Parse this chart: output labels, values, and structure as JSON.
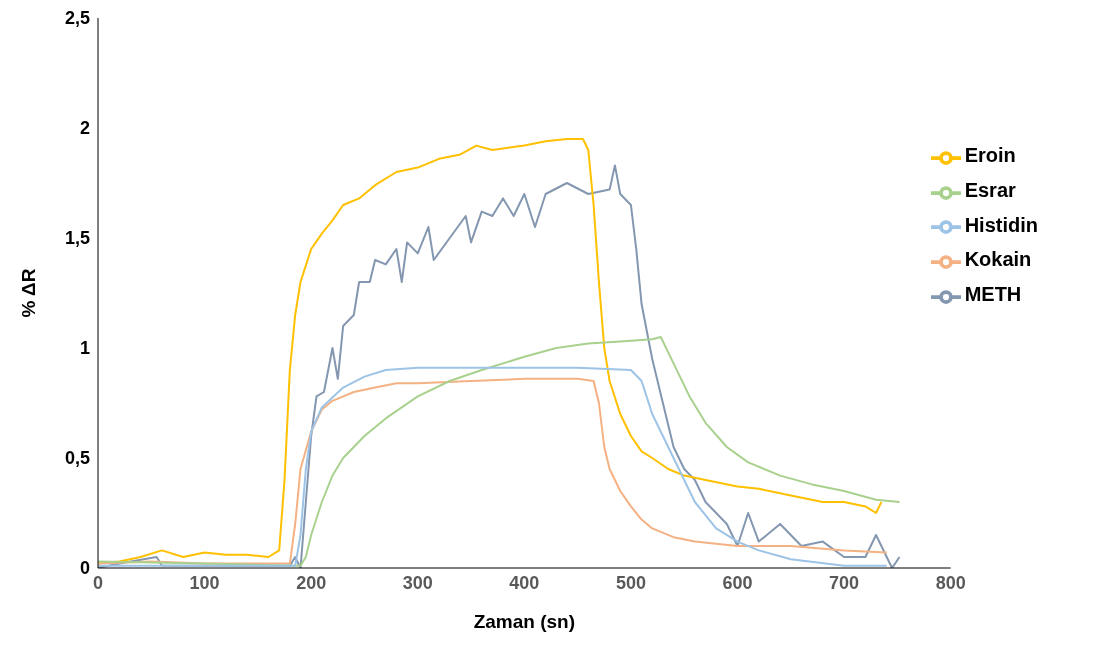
{
  "chart_data": {
    "type": "line",
    "xlabel": "Zaman (sn)",
    "ylabel": "% ΔR",
    "xlim": [
      0,
      800
    ],
    "xticks": [
      0,
      100,
      200,
      300,
      400,
      500,
      600,
      700,
      800
    ],
    "ylim": [
      0,
      2.5
    ],
    "yticks": [
      0,
      {
        "value": 0.5,
        "label": "0,5"
      },
      1,
      {
        "value": 1.5,
        "label": "1,5"
      },
      2,
      {
        "value": 2.5,
        "label": "2,5"
      }
    ],
    "grid": false,
    "legend": "right",
    "marker": "none",
    "line_style": "solid",
    "series": [
      {
        "name": "METH",
        "color": "#8497b0",
        "x": [
          0,
          20,
          55,
          60,
          100,
          150,
          180,
          185,
          190,
          195,
          200,
          205,
          212,
          218,
          220,
          225,
          230,
          240,
          245,
          255,
          260,
          270,
          280,
          285,
          290,
          300,
          310,
          315,
          330,
          345,
          350,
          360,
          370,
          380,
          390,
          400,
          410,
          420,
          440,
          460,
          480,
          485,
          490,
          500,
          505,
          510,
          520,
          530,
          540,
          550,
          560,
          570,
          580,
          590,
          600,
          610,
          620,
          640,
          660,
          680,
          700,
          720,
          730,
          740,
          745,
          752
        ],
        "values": [
          0,
          0.02,
          0.05,
          0.01,
          0.01,
          0.01,
          0.01,
          0.05,
          0,
          0.3,
          0.6,
          0.78,
          0.8,
          0.95,
          1.0,
          0.86,
          1.1,
          1.15,
          1.3,
          1.3,
          1.4,
          1.38,
          1.45,
          1.3,
          1.48,
          1.43,
          1.55,
          1.4,
          1.5,
          1.6,
          1.48,
          1.62,
          1.6,
          1.68,
          1.6,
          1.7,
          1.55,
          1.7,
          1.75,
          1.7,
          1.72,
          1.83,
          1.7,
          1.65,
          1.45,
          1.2,
          0.95,
          0.75,
          0.55,
          0.45,
          0.4,
          0.3,
          0.25,
          0.2,
          0.1,
          0.25,
          0.12,
          0.2,
          0.1,
          0.12,
          0.05,
          0.05,
          0.15,
          0.05,
          0,
          0.05
        ]
      },
      {
        "name": "Eroin",
        "color": "#ffc000",
        "x": [
          0,
          20,
          40,
          60,
          80,
          100,
          120,
          140,
          160,
          170,
          175,
          180,
          185,
          190,
          200,
          210,
          220,
          230,
          245,
          260,
          280,
          300,
          320,
          340,
          355,
          370,
          400,
          420,
          440,
          455,
          460,
          465,
          470,
          475,
          480,
          490,
          500,
          510,
          520,
          535,
          550,
          570,
          600,
          620,
          650,
          680,
          700,
          720,
          730,
          735
        ],
        "values": [
          0.02,
          0.03,
          0.05,
          0.08,
          0.05,
          0.07,
          0.06,
          0.06,
          0.05,
          0.08,
          0.4,
          0.9,
          1.15,
          1.3,
          1.45,
          1.52,
          1.58,
          1.65,
          1.68,
          1.74,
          1.8,
          1.82,
          1.86,
          1.88,
          1.92,
          1.9,
          1.92,
          1.94,
          1.95,
          1.95,
          1.9,
          1.65,
          1.3,
          1.0,
          0.85,
          0.7,
          0.6,
          0.53,
          0.5,
          0.45,
          0.42,
          0.4,
          0.37,
          0.36,
          0.33,
          0.3,
          0.3,
          0.28,
          0.25,
          0.3
        ]
      },
      {
        "name": "Kokain",
        "color": "#f4b183",
        "x": [
          0,
          50,
          100,
          150,
          180,
          185,
          190,
          200,
          210,
          220,
          240,
          260,
          280,
          300,
          350,
          400,
          450,
          465,
          470,
          475,
          480,
          490,
          500,
          510,
          520,
          540,
          560,
          600,
          650,
          700,
          740
        ],
        "values": [
          0.02,
          0.03,
          0.02,
          0.02,
          0.02,
          0.2,
          0.45,
          0.62,
          0.72,
          0.76,
          0.8,
          0.82,
          0.84,
          0.84,
          0.85,
          0.86,
          0.86,
          0.85,
          0.75,
          0.55,
          0.45,
          0.35,
          0.28,
          0.22,
          0.18,
          0.14,
          0.12,
          0.1,
          0.1,
          0.08,
          0.07
        ]
      },
      {
        "name": "Esrar",
        "color": "#a9d18e",
        "x": [
          0,
          100,
          190,
          195,
          200,
          210,
          220,
          230,
          250,
          270,
          300,
          330,
          360,
          400,
          430,
          460,
          490,
          520,
          528,
          535,
          545,
          555,
          570,
          590,
          610,
          640,
          670,
          700,
          730,
          752
        ],
        "values": [
          0.03,
          0.02,
          0.01,
          0.05,
          0.15,
          0.3,
          0.42,
          0.5,
          0.6,
          0.68,
          0.78,
          0.85,
          0.9,
          0.96,
          1.0,
          1.02,
          1.03,
          1.04,
          1.05,
          0.98,
          0.88,
          0.78,
          0.66,
          0.55,
          0.48,
          0.42,
          0.38,
          0.35,
          0.31,
          0.3
        ]
      },
      {
        "name": "Histidin",
        "color": "#9dc3e6",
        "x": [
          0,
          100,
          185,
          190,
          195,
          200,
          210,
          230,
          250,
          270,
          300,
          400,
          450,
          500,
          510,
          520,
          540,
          560,
          580,
          600,
          620,
          650,
          700,
          740
        ],
        "values": [
          0.01,
          0.01,
          0.01,
          0.15,
          0.45,
          0.62,
          0.73,
          0.82,
          0.87,
          0.9,
          0.91,
          0.91,
          0.91,
          0.9,
          0.85,
          0.7,
          0.5,
          0.3,
          0.18,
          0.12,
          0.08,
          0.04,
          0.01,
          0.01
        ]
      }
    ]
  }
}
